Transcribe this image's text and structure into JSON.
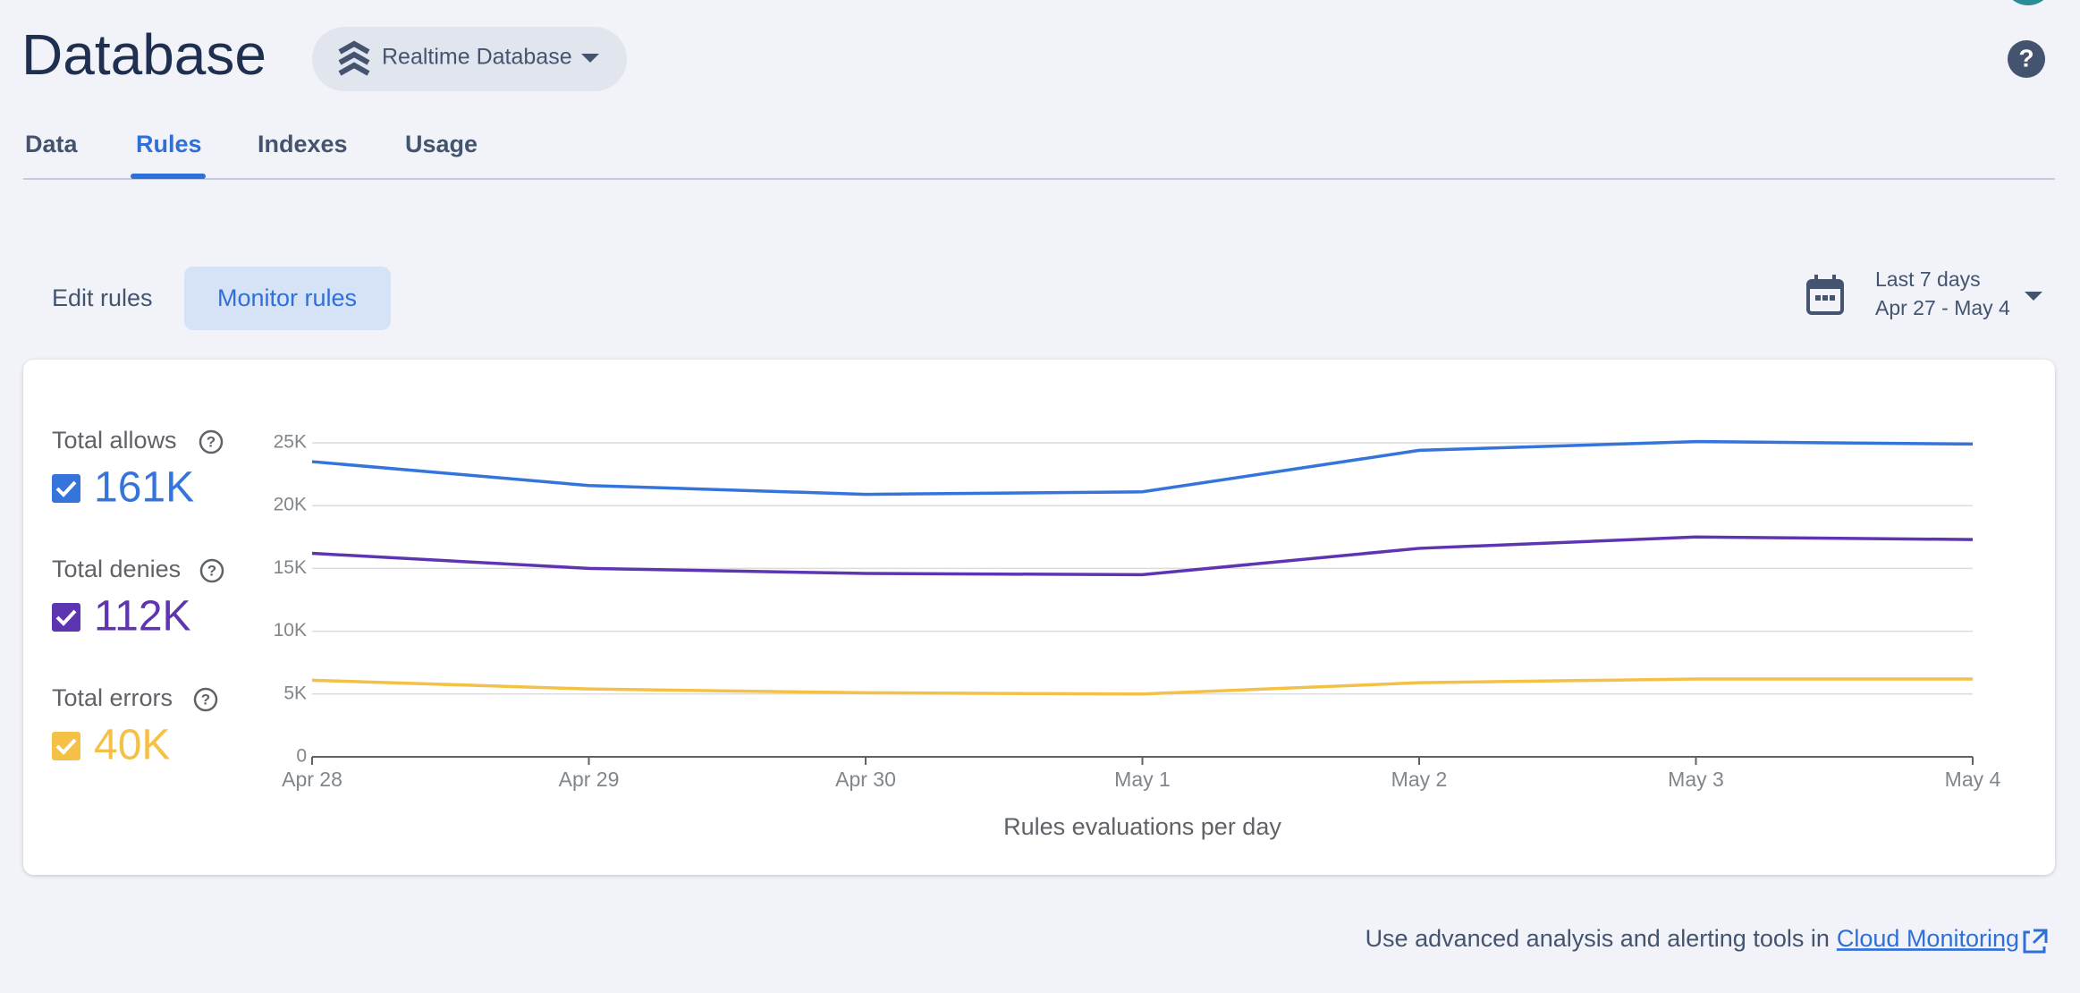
{
  "header": {
    "title": "Database",
    "db_selector": "Realtime Database"
  },
  "tabs": [
    "Data",
    "Rules",
    "Indexes",
    "Usage"
  ],
  "mode_buttons": [
    "Edit rules",
    "Monitor rules"
  ],
  "date_range": {
    "label": "Last 7 days",
    "range": "Apr 27 - May 4"
  },
  "chart_data": {
    "type": "line",
    "x_label": "Rules evaluations per day",
    "categories": [
      "Apr 28",
      "Apr 29",
      "Apr 30",
      "May 1",
      "May 2",
      "May 3",
      "May 4"
    ],
    "series": [
      {
        "name": "Total allows",
        "total_label": "161K",
        "color": "#3474db",
        "values": [
          23500,
          21600,
          20900,
          21100,
          24400,
          25100,
          24900
        ]
      },
      {
        "name": "Total denies",
        "total_label": "112K",
        "color": "#5e35b1",
        "values": [
          16200,
          15000,
          14600,
          14500,
          16600,
          17500,
          17300
        ]
      },
      {
        "name": "Total errors",
        "total_label": "40K",
        "color": "#f4c046",
        "values": [
          6100,
          5400,
          5100,
          5000,
          5900,
          6200,
          6200
        ]
      }
    ],
    "ylim": [
      0,
      25000
    ],
    "yticks": [
      0,
      {
        "value": 5000,
        "label": "5K"
      },
      {
        "value": 10000,
        "label": "10K"
      },
      {
        "value": 15000,
        "label": "15K"
      },
      {
        "value": 20000,
        "label": "20K"
      },
      {
        "value": 25000,
        "label": "25K"
      }
    ],
    "grid": true
  },
  "footer": {
    "text": "Use advanced analysis and alerting tools in",
    "link": "Cloud Monitoring"
  }
}
